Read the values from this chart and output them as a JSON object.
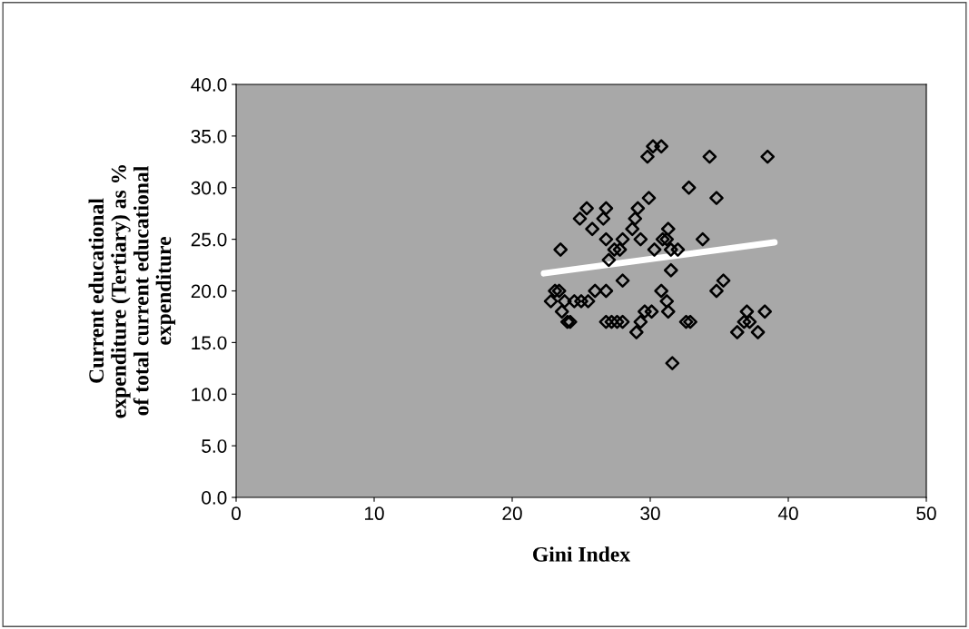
{
  "chart_data": {
    "type": "scatter",
    "xlabel": "Gini Index",
    "ylabel": "Current educational\nexpenditure (Tertiary) as %\nof total current educational\nexpenditure",
    "xlim": [
      0,
      50
    ],
    "xticks": [
      0,
      10,
      20,
      30,
      40,
      50
    ],
    "ylim": [
      0,
      40
    ],
    "yticks": [
      {
        "value": 0,
        "label": "0.0"
      },
      {
        "value": 5,
        "label": "5.0"
      },
      {
        "value": 10,
        "label": "10.0"
      },
      {
        "value": 15,
        "label": "15.0"
      },
      {
        "value": 20,
        "label": "20.0"
      },
      {
        "value": 25,
        "label": "25.0"
      },
      {
        "value": 30,
        "label": "30.0"
      },
      {
        "value": 35,
        "label": "35.0"
      },
      {
        "value": 40,
        "label": "40.0"
      }
    ],
    "grid": false,
    "legend": false,
    "series": [
      {
        "marker": "diamond",
        "color": "#000000",
        "x": [
          23.5,
          24.9,
          25.4,
          25.8,
          26.6,
          26.8,
          26.8,
          27.8,
          28.0,
          28.7,
          28.9,
          29.1,
          29.3,
          29.9,
          29.8,
          30.2,
          30.8,
          30.3,
          30.9,
          31.2,
          31.3,
          31.5,
          32.0,
          32.8,
          33.8,
          34.3,
          34.8,
          38.5,
          22.8,
          23.1,
          23.4,
          23.6,
          23.8,
          24.0,
          24.2,
          24.5,
          25.0,
          25.5,
          26.0,
          26.8,
          26.8,
          27.2,
          27.6,
          28.0,
          28.0,
          29.0,
          29.3,
          29.6,
          30.1,
          30.8,
          31.2,
          31.3,
          31.6,
          31.5,
          32.6,
          32.9,
          34.8,
          35.3,
          36.3,
          36.8,
          37.0,
          37.2,
          37.8,
          38.3,
          27.0,
          27.4
        ],
        "values": [
          24,
          27,
          28,
          26,
          27,
          28,
          25,
          24,
          25,
          26,
          27,
          28,
          25,
          29,
          33,
          34,
          34,
          24,
          25,
          25,
          26,
          24,
          24,
          30,
          25,
          33,
          29,
          33,
          19,
          20,
          20,
          18,
          19,
          17,
          17,
          19,
          19,
          19,
          20,
          20,
          17,
          17,
          17,
          21,
          17,
          16,
          17,
          18,
          18,
          20,
          19,
          18,
          13,
          22,
          17,
          17,
          20,
          21,
          16,
          17,
          18,
          17,
          16,
          18,
          23,
          24
        ]
      },
      {
        "type": "line",
        "marker": "none",
        "color": "#ffffff",
        "x": [
          22.3,
          39.0
        ],
        "values": [
          21.7,
          24.7
        ]
      }
    ]
  }
}
